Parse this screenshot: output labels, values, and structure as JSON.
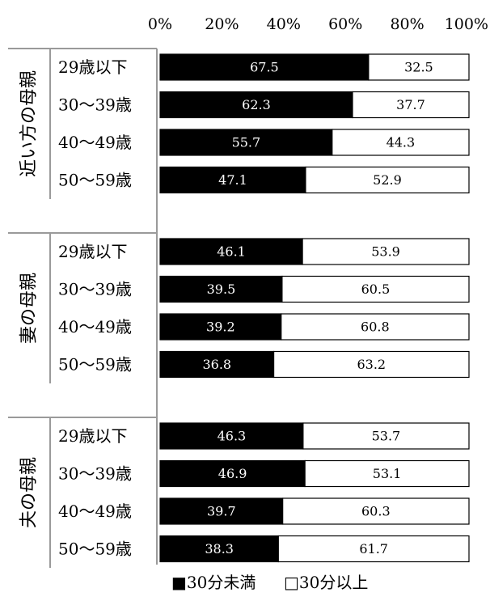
{
  "chart_data": {
    "type": "bar",
    "stacked": true,
    "orientation": "horizontal",
    "xlim": [
      0,
      100
    ],
    "x_ticks": [
      "0%",
      "20%",
      "40%",
      "60%",
      "80%",
      "100%"
    ],
    "series": [
      {
        "name": "30分未満",
        "color": "#000000"
      },
      {
        "name": "30分以上",
        "color": "#ffffff"
      }
    ],
    "groups": [
      {
        "name": "近い方の母親",
        "rows": [
          {
            "category": "29歳以下",
            "values": [
              67.5,
              32.5
            ]
          },
          {
            "category": "30〜39歳",
            "values": [
              62.3,
              37.7
            ]
          },
          {
            "category": "40〜49歳",
            "values": [
              55.7,
              44.3
            ]
          },
          {
            "category": "50〜59歳",
            "values": [
              47.1,
              52.9
            ]
          }
        ]
      },
      {
        "name": "妻の母親",
        "rows": [
          {
            "category": "29歳以下",
            "values": [
              46.1,
              53.9
            ]
          },
          {
            "category": "30〜39歳",
            "values": [
              39.5,
              60.5
            ]
          },
          {
            "category": "40〜49歳",
            "values": [
              39.2,
              60.8
            ]
          },
          {
            "category": "50〜59歳",
            "values": [
              36.8,
              63.2
            ]
          }
        ]
      },
      {
        "name": "夫の母親",
        "rows": [
          {
            "category": "29歳以下",
            "values": [
              46.3,
              53.7
            ]
          },
          {
            "category": "30〜39歳",
            "values": [
              46.9,
              53.1
            ]
          },
          {
            "category": "40〜49歳",
            "values": [
              39.7,
              60.3
            ]
          },
          {
            "category": "50〜59歳",
            "values": [
              38.3,
              61.7
            ]
          }
        ]
      }
    ],
    "legend": [
      "■30分未満",
      "□30分以上"
    ],
    "legend_position": "bottom"
  }
}
